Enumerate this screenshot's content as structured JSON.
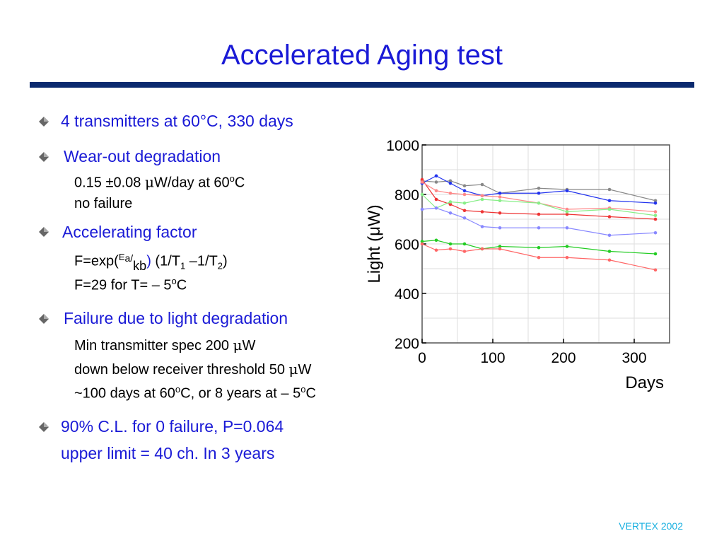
{
  "title": "Accelerated Aging test",
  "bullets": {
    "b1": "4 transmitters at 60°C, 330 days",
    "b2": "Wear-out degradation",
    "b2_l1_pre": "0.15 ±0.08 ",
    "b2_l1_mu": "μ",
    "b2_l1_post": "W/day at 60",
    "b2_l1_sup": "o",
    "b2_l1_end": "C",
    "b2_l2": "no failure",
    "b3": "Accelerating factor",
    "b3_l1_a": "F=exp(",
    "b3_l1_sup": "E",
    "b3_l1_a2": "a/",
    "b3_l1_kb": "kb",
    "b3_l1_paren": ")",
    "b3_l1_b": " (1/T",
    "b3_l1_sub1": "1",
    "b3_l1_c": " –1/T",
    "b3_l1_sub2": "2",
    "b3_l1_d": ")",
    "b3_l2_a": "F=29 for  T= – 5",
    "b3_l2_sup": "o",
    "b3_l2_b": "C",
    "b4": "Failure due to light degradation",
    "b4_l1_a": "Min transmitter spec 200 ",
    "b4_l1_mu": "μ",
    "b4_l1_b": "W",
    "b4_l2_a": "down below receiver threshold 50 ",
    "b4_l2_mu": "μ",
    "b4_l2_b": "W",
    "b4_l3_a": "~100 days at 60",
    "b4_l3_sup1": "o",
    "b4_l3_b": "C, or 8 years at – 5",
    "b4_l3_sup2": "o",
    "b4_l3_c": "C",
    "b5": "90% C.L. for 0 failure, P=0.064",
    "b5_l2": "upper limit = 40 ch. In 3 years"
  },
  "footer": "VERTEX 2002",
  "colors": {
    "title": "#1a1ad6",
    "rule": "#0b2a6f",
    "footer": "#1ab0e0"
  },
  "chart_data": {
    "type": "line",
    "xlabel": "Days",
    "ylabel": "Light (μW)",
    "xlim": [
      0,
      350
    ],
    "ylim": [
      200,
      1000
    ],
    "xticks": [
      0,
      100,
      200,
      300
    ],
    "yticks": [
      200,
      400,
      600,
      800,
      1000
    ],
    "grid": true,
    "series": [
      {
        "color": "#888888",
        "x": [
          0,
          20,
          40,
          60,
          85,
          110,
          165,
          205,
          265,
          330
        ],
        "y": [
          855,
          850,
          855,
          835,
          840,
          805,
          825,
          820,
          820,
          775
        ]
      },
      {
        "color": "#2233ee",
        "x": [
          0,
          20,
          40,
          60,
          85,
          110,
          165,
          205,
          265,
          330
        ],
        "y": [
          845,
          875,
          845,
          815,
          795,
          805,
          805,
          815,
          775,
          765
        ]
      },
      {
        "color": "#ee3333",
        "x": [
          0,
          20,
          40,
          60,
          85,
          110,
          165,
          205,
          265,
          330
        ],
        "y": [
          860,
          780,
          760,
          735,
          730,
          725,
          720,
          720,
          710,
          700
        ]
      },
      {
        "color": "#ff8888",
        "x": [
          0,
          20,
          40,
          60,
          85,
          110,
          165,
          205,
          265,
          330
        ],
        "y": [
          850,
          815,
          805,
          800,
          795,
          790,
          765,
          740,
          745,
          730
        ]
      },
      {
        "color": "#88ee88",
        "x": [
          0,
          20,
          40,
          60,
          85,
          110,
          165,
          205,
          265,
          330
        ],
        "y": [
          800,
          745,
          770,
          765,
          780,
          775,
          765,
          730,
          740,
          715
        ]
      },
      {
        "color": "#8888ff",
        "x": [
          0,
          20,
          40,
          60,
          85,
          110,
          165,
          205,
          265,
          330
        ],
        "y": [
          740,
          745,
          725,
          705,
          670,
          665,
          665,
          665,
          635,
          645
        ]
      },
      {
        "color": "#22cc22",
        "x": [
          0,
          20,
          40,
          60,
          85,
          110,
          165,
          205,
          265,
          330
        ],
        "y": [
          610,
          615,
          600,
          600,
          580,
          590,
          585,
          590,
          570,
          560
        ]
      },
      {
        "color": "#ff6666",
        "x": [
          0,
          20,
          40,
          60,
          85,
          110,
          165,
          205,
          265,
          330
        ],
        "y": [
          600,
          575,
          580,
          570,
          580,
          580,
          545,
          545,
          535,
          495
        ]
      }
    ]
  }
}
